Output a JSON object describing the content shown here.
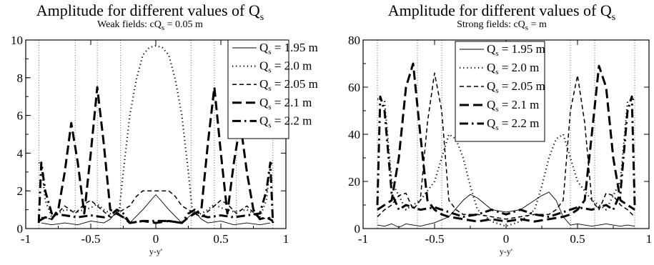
{
  "chart_data": [
    {
      "type": "line",
      "title": "Amplitude for different values of Q",
      "title_sub": "s",
      "subtitle": "Weak fields: cQ",
      "subtitle_sub": "s",
      "subtitle_tail": " = 0.05 m",
      "xlabel": "y-y'",
      "xlim": [
        -1,
        1
      ],
      "ylim": [
        0,
        10
      ],
      "xticks": [
        "-1",
        "-0.5",
        "0",
        "0.5",
        "1"
      ],
      "xtick_values": [
        -1,
        -0.5,
        0,
        0.5,
        1
      ],
      "yticks": [
        "0",
        "2",
        "4",
        "6",
        "8",
        "10"
      ],
      "ytick_values": [
        0,
        2,
        4,
        6,
        8,
        10
      ],
      "vertical_lines": [
        -0.9,
        -0.62,
        -0.45,
        -0.27,
        0.27,
        0.45,
        0.62,
        0.9
      ],
      "legend_position": "top-right",
      "series": [
        {
          "name": "Q",
          "name_sub": "s",
          "name_tail": " = 1.95 m",
          "style": "solid",
          "x": [
            -0.88,
            -0.8,
            -0.7,
            -0.6,
            -0.5,
            -0.4,
            -0.35,
            -0.3,
            -0.25,
            -0.2,
            -0.1,
            0,
            0.1,
            0.2,
            0.25,
            0.3,
            0.35,
            0.4,
            0.5,
            0.6,
            0.7,
            0.8,
            0.88
          ],
          "y": [
            0.3,
            0.2,
            0.3,
            0.2,
            0.4,
            0.3,
            0.5,
            0.9,
            0.6,
            0.3,
            1.0,
            1.8,
            1.0,
            0.3,
            0.6,
            0.9,
            0.5,
            0.3,
            0.4,
            0.2,
            0.3,
            0.2,
            0.3
          ]
        },
        {
          "name": "Q",
          "name_sub": "s",
          "name_tail": " = 2.0 m",
          "style": "dotted",
          "x": [
            -0.9,
            -0.88,
            -0.85,
            -0.8,
            -0.7,
            -0.6,
            -0.5,
            -0.45,
            -0.4,
            -0.35,
            -0.3,
            -0.28,
            -0.25,
            -0.2,
            -0.15,
            -0.1,
            -0.05,
            0,
            0.05,
            0.1,
            0.15,
            0.2,
            0.25,
            0.28,
            0.3,
            0.35,
            0.4,
            0.45,
            0.5,
            0.6,
            0.7,
            0.8,
            0.85,
            0.88,
            0.9
          ],
          "y": [
            3.5,
            3.4,
            1.5,
            0.6,
            1.0,
            0.9,
            1.1,
            1.3,
            1.0,
            0.8,
            0.7,
            1.0,
            3.0,
            6.0,
            7.9,
            9.2,
            9.6,
            9.7,
            9.6,
            9.2,
            7.9,
            6.0,
            3.0,
            1.0,
            0.7,
            0.8,
            1.0,
            1.3,
            1.1,
            0.9,
            1.0,
            0.6,
            1.5,
            3.4,
            3.5
          ]
        },
        {
          "name": "Q",
          "name_sub": "s",
          "name_tail": " = 2.05 m",
          "style": "dashed",
          "x": [
            -0.88,
            -0.8,
            -0.7,
            -0.62,
            -0.55,
            -0.5,
            -0.45,
            -0.4,
            -0.35,
            -0.3,
            -0.25,
            -0.2,
            -0.15,
            -0.1,
            0,
            0.1,
            0.15,
            0.2,
            0.25,
            0.3,
            0.35,
            0.4,
            0.45,
            0.5,
            0.55,
            0.62,
            0.7,
            0.8,
            0.88
          ],
          "y": [
            0.6,
            0.5,
            1.2,
            0.8,
            1.3,
            1.5,
            1.2,
            0.9,
            0.6,
            0.8,
            1.0,
            1.2,
            1.7,
            2.0,
            2.0,
            2.0,
            1.7,
            1.2,
            1.0,
            0.8,
            0.6,
            0.9,
            1.2,
            1.5,
            1.3,
            0.8,
            1.2,
            0.5,
            0.6
          ]
        },
        {
          "name": "Q",
          "name_sub": "s",
          "name_tail": " = 2.1 m",
          "style": "longdash",
          "x": [
            -0.9,
            -0.85,
            -0.8,
            -0.75,
            -0.7,
            -0.65,
            -0.6,
            -0.55,
            -0.5,
            -0.45,
            -0.4,
            -0.35,
            -0.3,
            -0.25,
            -0.2,
            -0.1,
            0,
            0.1,
            0.2,
            0.25,
            0.3,
            0.35,
            0.4,
            0.45,
            0.5,
            0.55,
            0.6,
            0.65,
            0.7,
            0.75,
            0.8,
            0.85,
            0.9
          ],
          "y": [
            0.4,
            0.6,
            0.5,
            1.0,
            3.0,
            5.6,
            3.5,
            0.8,
            4.0,
            7.5,
            4.5,
            1.0,
            0.8,
            0.6,
            0.3,
            0.4,
            0.3,
            0.4,
            0.3,
            0.6,
            0.8,
            1.0,
            4.5,
            7.5,
            4.0,
            0.8,
            3.5,
            5.6,
            3.0,
            1.0,
            0.5,
            0.6,
            0.4
          ]
        },
        {
          "name": "Q",
          "name_sub": "s",
          "name_tail": " = 2.2 m",
          "style": "dashdot",
          "x": [
            -0.9,
            -0.88,
            -0.85,
            -0.8,
            -0.7,
            -0.6,
            -0.5,
            -0.4,
            -0.35,
            -0.3,
            -0.25,
            -0.2,
            -0.1,
            0,
            0.1,
            0.2,
            0.25,
            0.3,
            0.35,
            0.4,
            0.5,
            0.6,
            0.7,
            0.8,
            0.85,
            0.88,
            0.9
          ],
          "y": [
            0.3,
            3.5,
            2.0,
            0.8,
            0.7,
            0.6,
            0.7,
            0.6,
            0.7,
            1.0,
            0.8,
            0.3,
            0.4,
            0.4,
            0.4,
            0.3,
            0.8,
            1.0,
            0.7,
            0.6,
            0.7,
            0.6,
            0.7,
            0.8,
            2.0,
            3.5,
            0.3
          ]
        }
      ]
    },
    {
      "type": "line",
      "title": "Amplitude for different values of Q",
      "title_sub": "s",
      "subtitle": "Strong fields: cQ",
      "subtitle_sub": "s",
      "subtitle_tail": " = m",
      "xlabel": "y-y'",
      "xlim": [
        -1,
        1
      ],
      "ylim": [
        0,
        80
      ],
      "xticks": [
        "-1",
        "-0.5",
        "0",
        "0.5",
        "1"
      ],
      "xtick_values": [
        -1,
        -0.5,
        0,
        0.5,
        1
      ],
      "yticks": [
        "0",
        "20",
        "40",
        "60",
        "80"
      ],
      "ytick_values": [
        0,
        20,
        40,
        60,
        80
      ],
      "vertical_lines": [
        -0.9,
        -0.62,
        -0.45,
        0.45,
        0.62,
        0.9
      ],
      "legend_position": "top-center",
      "series": [
        {
          "name": "Q",
          "name_sub": "s",
          "name_tail": " = 1.95 m",
          "style": "solid",
          "x": [
            -0.9,
            -0.85,
            -0.8,
            -0.75,
            -0.7,
            -0.6,
            -0.5,
            -0.4,
            -0.3,
            -0.25,
            -0.2,
            -0.1,
            0,
            0.1,
            0.2,
            0.25,
            0.3,
            0.35,
            0.4,
            0.45,
            0.5,
            0.6,
            0.7,
            0.8,
            0.85,
            0.9
          ],
          "y": [
            1.5,
            1.0,
            2.0,
            0.5,
            2.0,
            1.0,
            2.5,
            5.0,
            12.0,
            14.5,
            13.0,
            8.0,
            7.0,
            8.0,
            12.0,
            14.0,
            15.5,
            12.0,
            5.0,
            1.5,
            2.0,
            1.0,
            2.0,
            1.0,
            1.5,
            1.0
          ]
        },
        {
          "name": "Q",
          "name_sub": "s",
          "name_tail": " = 2.0 m",
          "style": "dotted",
          "x": [
            -0.9,
            -0.85,
            -0.8,
            -0.7,
            -0.6,
            -0.5,
            -0.45,
            -0.4,
            -0.35,
            -0.3,
            -0.25,
            -0.2,
            -0.1,
            0,
            0.1,
            0.2,
            0.25,
            0.3,
            0.35,
            0.4,
            0.45,
            0.5,
            0.6,
            0.7,
            0.8,
            0.85,
            0.9
          ],
          "y": [
            55.0,
            54.0,
            20.0,
            8.0,
            12.0,
            20.0,
            30.0,
            40.0,
            38.0,
            30.0,
            18.0,
            8.0,
            3.0,
            1.0,
            3.0,
            8.0,
            18.0,
            30.0,
            38.0,
            40.0,
            30.0,
            20.0,
            12.0,
            8.0,
            20.0,
            54.0,
            55.0
          ]
        },
        {
          "name": "Q",
          "name_sub": "s",
          "name_tail": " = 2.05 m",
          "style": "dashed",
          "x": [
            -0.9,
            -0.85,
            -0.8,
            -0.75,
            -0.7,
            -0.65,
            -0.6,
            -0.55,
            -0.5,
            -0.45,
            -0.4,
            -0.35,
            -0.3,
            -0.2,
            -0.1,
            0,
            0.1,
            0.2,
            0.3,
            0.35,
            0.4,
            0.45,
            0.5,
            0.55,
            0.6,
            0.65,
            0.7,
            0.75,
            0.8,
            0.85,
            0.9
          ],
          "y": [
            5.0,
            8.0,
            10.0,
            14.0,
            15.0,
            8.0,
            12.0,
            45.0,
            66.0,
            50.0,
            12.0,
            8.0,
            6.0,
            6.0,
            5.0,
            4.0,
            5.0,
            6.0,
            6.0,
            8.0,
            12.0,
            50.0,
            65.0,
            45.0,
            12.0,
            8.0,
            15.0,
            14.0,
            10.0,
            8.0,
            5.0
          ]
        },
        {
          "name": "Q",
          "name_sub": "s",
          "name_tail": " = 2.1 m",
          "style": "longdash",
          "x": [
            -0.9,
            -0.85,
            -0.8,
            -0.75,
            -0.7,
            -0.65,
            -0.6,
            -0.55,
            -0.5,
            -0.45,
            -0.4,
            -0.3,
            -0.2,
            -0.1,
            0,
            0.1,
            0.2,
            0.3,
            0.4,
            0.45,
            0.5,
            0.55,
            0.6,
            0.65,
            0.7,
            0.75,
            0.8,
            0.85,
            0.9
          ],
          "y": [
            8.0,
            10.0,
            12.0,
            30.0,
            60.0,
            70.0,
            40.0,
            12.0,
            8.0,
            6.0,
            5.0,
            4.0,
            3.0,
            4.0,
            3.0,
            4.0,
            3.0,
            4.0,
            5.0,
            6.0,
            8.0,
            12.0,
            40.0,
            69.0,
            60.0,
            30.0,
            12.0,
            10.0,
            8.0
          ]
        },
        {
          "name": "Q",
          "name_sub": "s",
          "name_tail": " = 2.2 m",
          "style": "dashdot",
          "x": [
            -0.9,
            -0.88,
            -0.85,
            -0.8,
            -0.75,
            -0.7,
            -0.6,
            -0.5,
            -0.4,
            -0.3,
            -0.2,
            -0.1,
            0,
            0.1,
            0.2,
            0.3,
            0.4,
            0.5,
            0.6,
            0.7,
            0.75,
            0.8,
            0.85,
            0.88,
            0.9
          ],
          "y": [
            10.0,
            56.0,
            50.0,
            15.0,
            8.0,
            10.0,
            8.0,
            9.0,
            7.0,
            5.0,
            6.0,
            8.0,
            6.0,
            8.0,
            6.0,
            5.0,
            7.0,
            9.0,
            8.0,
            10.0,
            8.0,
            15.0,
            50.0,
            56.0,
            10.0
          ]
        }
      ]
    }
  ]
}
